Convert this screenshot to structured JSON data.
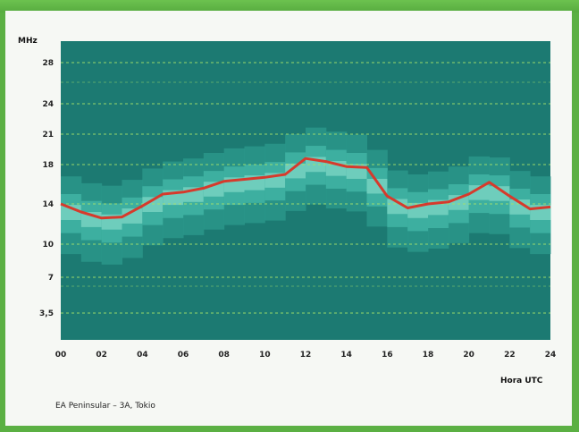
{
  "chart_data": {
    "type": "line",
    "ylabel": "MHz",
    "xlabel": "Hora UTC",
    "caption": "EA Peninsular – 3A, Tokio",
    "x_ticks": [
      "00",
      "02",
      "04",
      "06",
      "08",
      "10",
      "12",
      "14",
      "16",
      "18",
      "20",
      "22",
      "24"
    ],
    "y_ticks": [
      "3,5",
      "7",
      "10",
      "14",
      "18",
      "21",
      "24",
      "28"
    ],
    "x": [
      0,
      1,
      2,
      3,
      4,
      5,
      6,
      7,
      8,
      9,
      10,
      11,
      12,
      13,
      14,
      15,
      16,
      17,
      18,
      19,
      20,
      21,
      22,
      23,
      24
    ],
    "series": [
      {
        "values": [
          14.0,
          13.2,
          12.6,
          12.7,
          13.8,
          15.0,
          15.2,
          15.6,
          16.3,
          16.5,
          16.7,
          17.0,
          18.6,
          18.3,
          17.8,
          17.7,
          14.8,
          13.6,
          14.0,
          14.2,
          15.0,
          16.2,
          14.8,
          13.5,
          13.7
        ],
        "color": "#d63a2c"
      }
    ],
    "colors": {
      "background": "#1c7a72",
      "band_light": "#3fb3a3",
      "band_core": "#7fd7c6",
      "grid": "#a6e36b",
      "line": "#d63a2c"
    },
    "grid": true
  }
}
